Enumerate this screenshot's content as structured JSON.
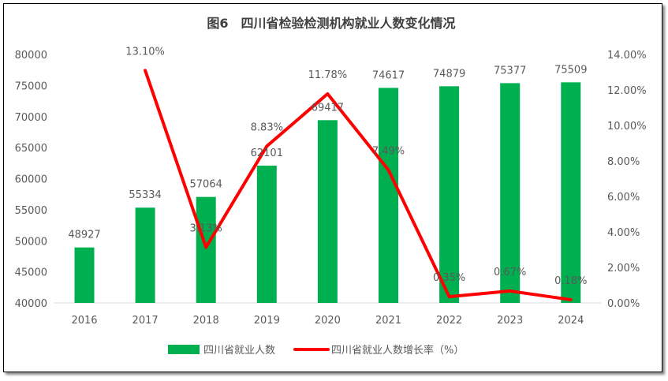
{
  "chart_data": {
    "type": "bar+line",
    "title": "图6　四川省检验检测机构就业人数变化情况",
    "categories": [
      "2016",
      "2017",
      "2018",
      "2019",
      "2020",
      "2021",
      "2022",
      "2023",
      "2024"
    ],
    "series": [
      {
        "name": "四川省就业人数",
        "type": "bar",
        "axis": "left",
        "color": "#00B050",
        "values": [
          48927,
          55334,
          57064,
          62101,
          69417,
          74617,
          74879,
          75377,
          75509
        ],
        "labels": [
          "48927",
          "55334",
          "57064",
          "62101",
          "69417",
          "74617",
          "74879",
          "75377",
          "75509"
        ]
      },
      {
        "name": "四川省就业人数增长率（%）",
        "type": "line",
        "axis": "right",
        "color": "#FF0000",
        "values": [
          null,
          13.1,
          3.13,
          8.83,
          11.78,
          7.49,
          0.35,
          0.67,
          0.18
        ],
        "labels": [
          "",
          "13.10%",
          "3.13%",
          "8.83%",
          "11.78%",
          "7.49%",
          "0.35%",
          "0.67%",
          "0.18%"
        ]
      }
    ],
    "y_left": {
      "min": 40000,
      "max": 80000,
      "ticks": [
        "40000",
        "45000",
        "50000",
        "55000",
        "60000",
        "65000",
        "70000",
        "75000",
        "80000"
      ]
    },
    "y_right": {
      "min": 0,
      "max": 14,
      "ticks": [
        "0.00%",
        "2.00%",
        "4.00%",
        "6.00%",
        "8.00%",
        "10.00%",
        "12.00%",
        "14.00%"
      ]
    },
    "grid": false,
    "legend": "bottom"
  }
}
